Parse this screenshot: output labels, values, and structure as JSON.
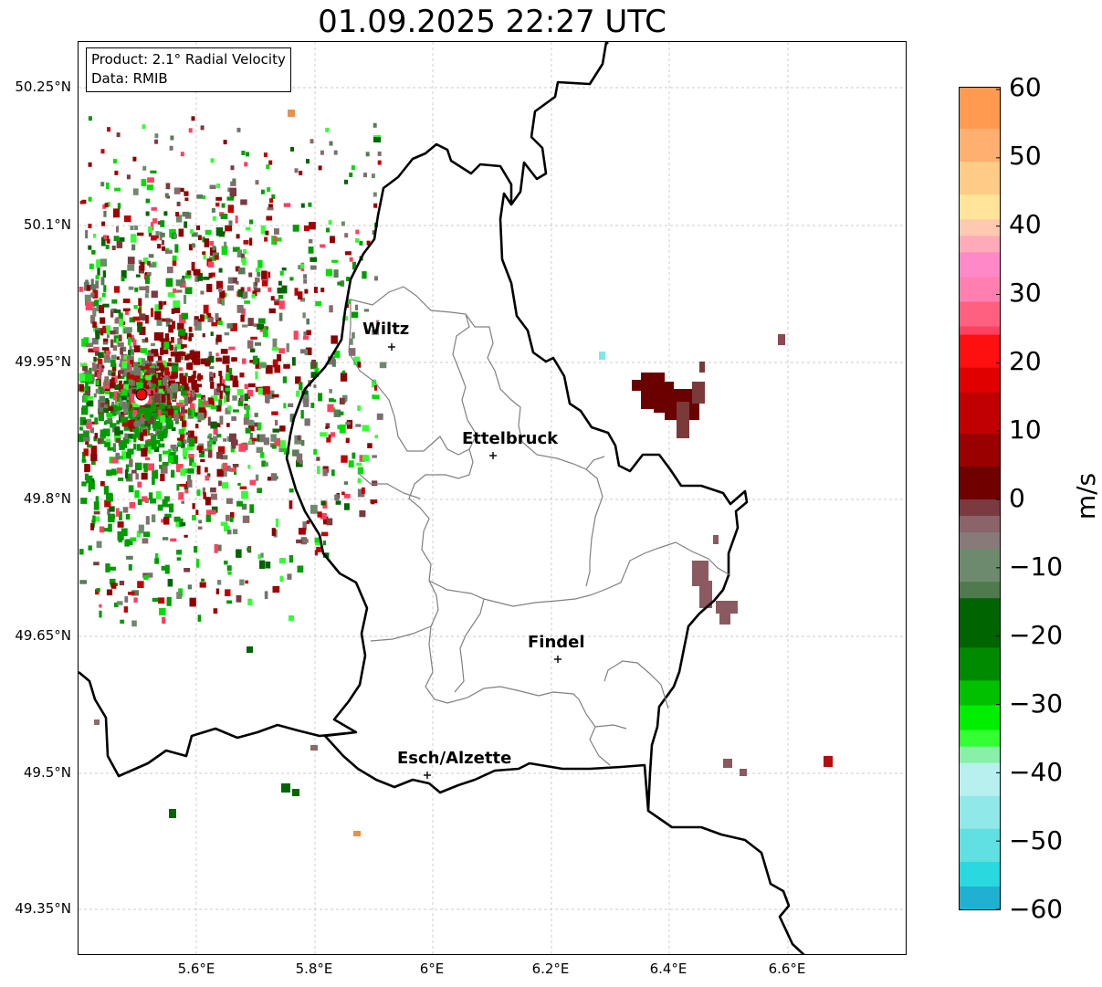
{
  "title": "01.09.2025 22:27 UTC",
  "info": {
    "product": "Product: 2.1° Radial Velocity",
    "data_source": "Data: RMIB"
  },
  "axes": {
    "lat_labels": [
      "50.25°N",
      "50.1°N",
      "49.95°N",
      "49.8°N",
      "49.65°N",
      "49.5°N",
      "49.35°N"
    ],
    "lon_labels": [
      "5.6°E",
      "5.8°E",
      "6°E",
      "6.2°E",
      "6.4°E",
      "6.6°E"
    ]
  },
  "cities": [
    {
      "name": "Wiltz"
    },
    {
      "name": "Ettelbruck"
    },
    {
      "name": "Findel"
    },
    {
      "name": "Esch/Alzette"
    }
  ],
  "colorbar": {
    "unit": "m/s",
    "min": -60,
    "max": 60,
    "tick_labels": [
      "60",
      "50",
      "40",
      "30",
      "20",
      "10",
      "0",
      "−10",
      "−20",
      "−30",
      "−40",
      "−50",
      "−60"
    ]
  },
  "colors": {
    "border": "#000000",
    "canton_border": "#808080",
    "grid": "#bbbbbb",
    "radar_site": "#ff0000"
  }
}
